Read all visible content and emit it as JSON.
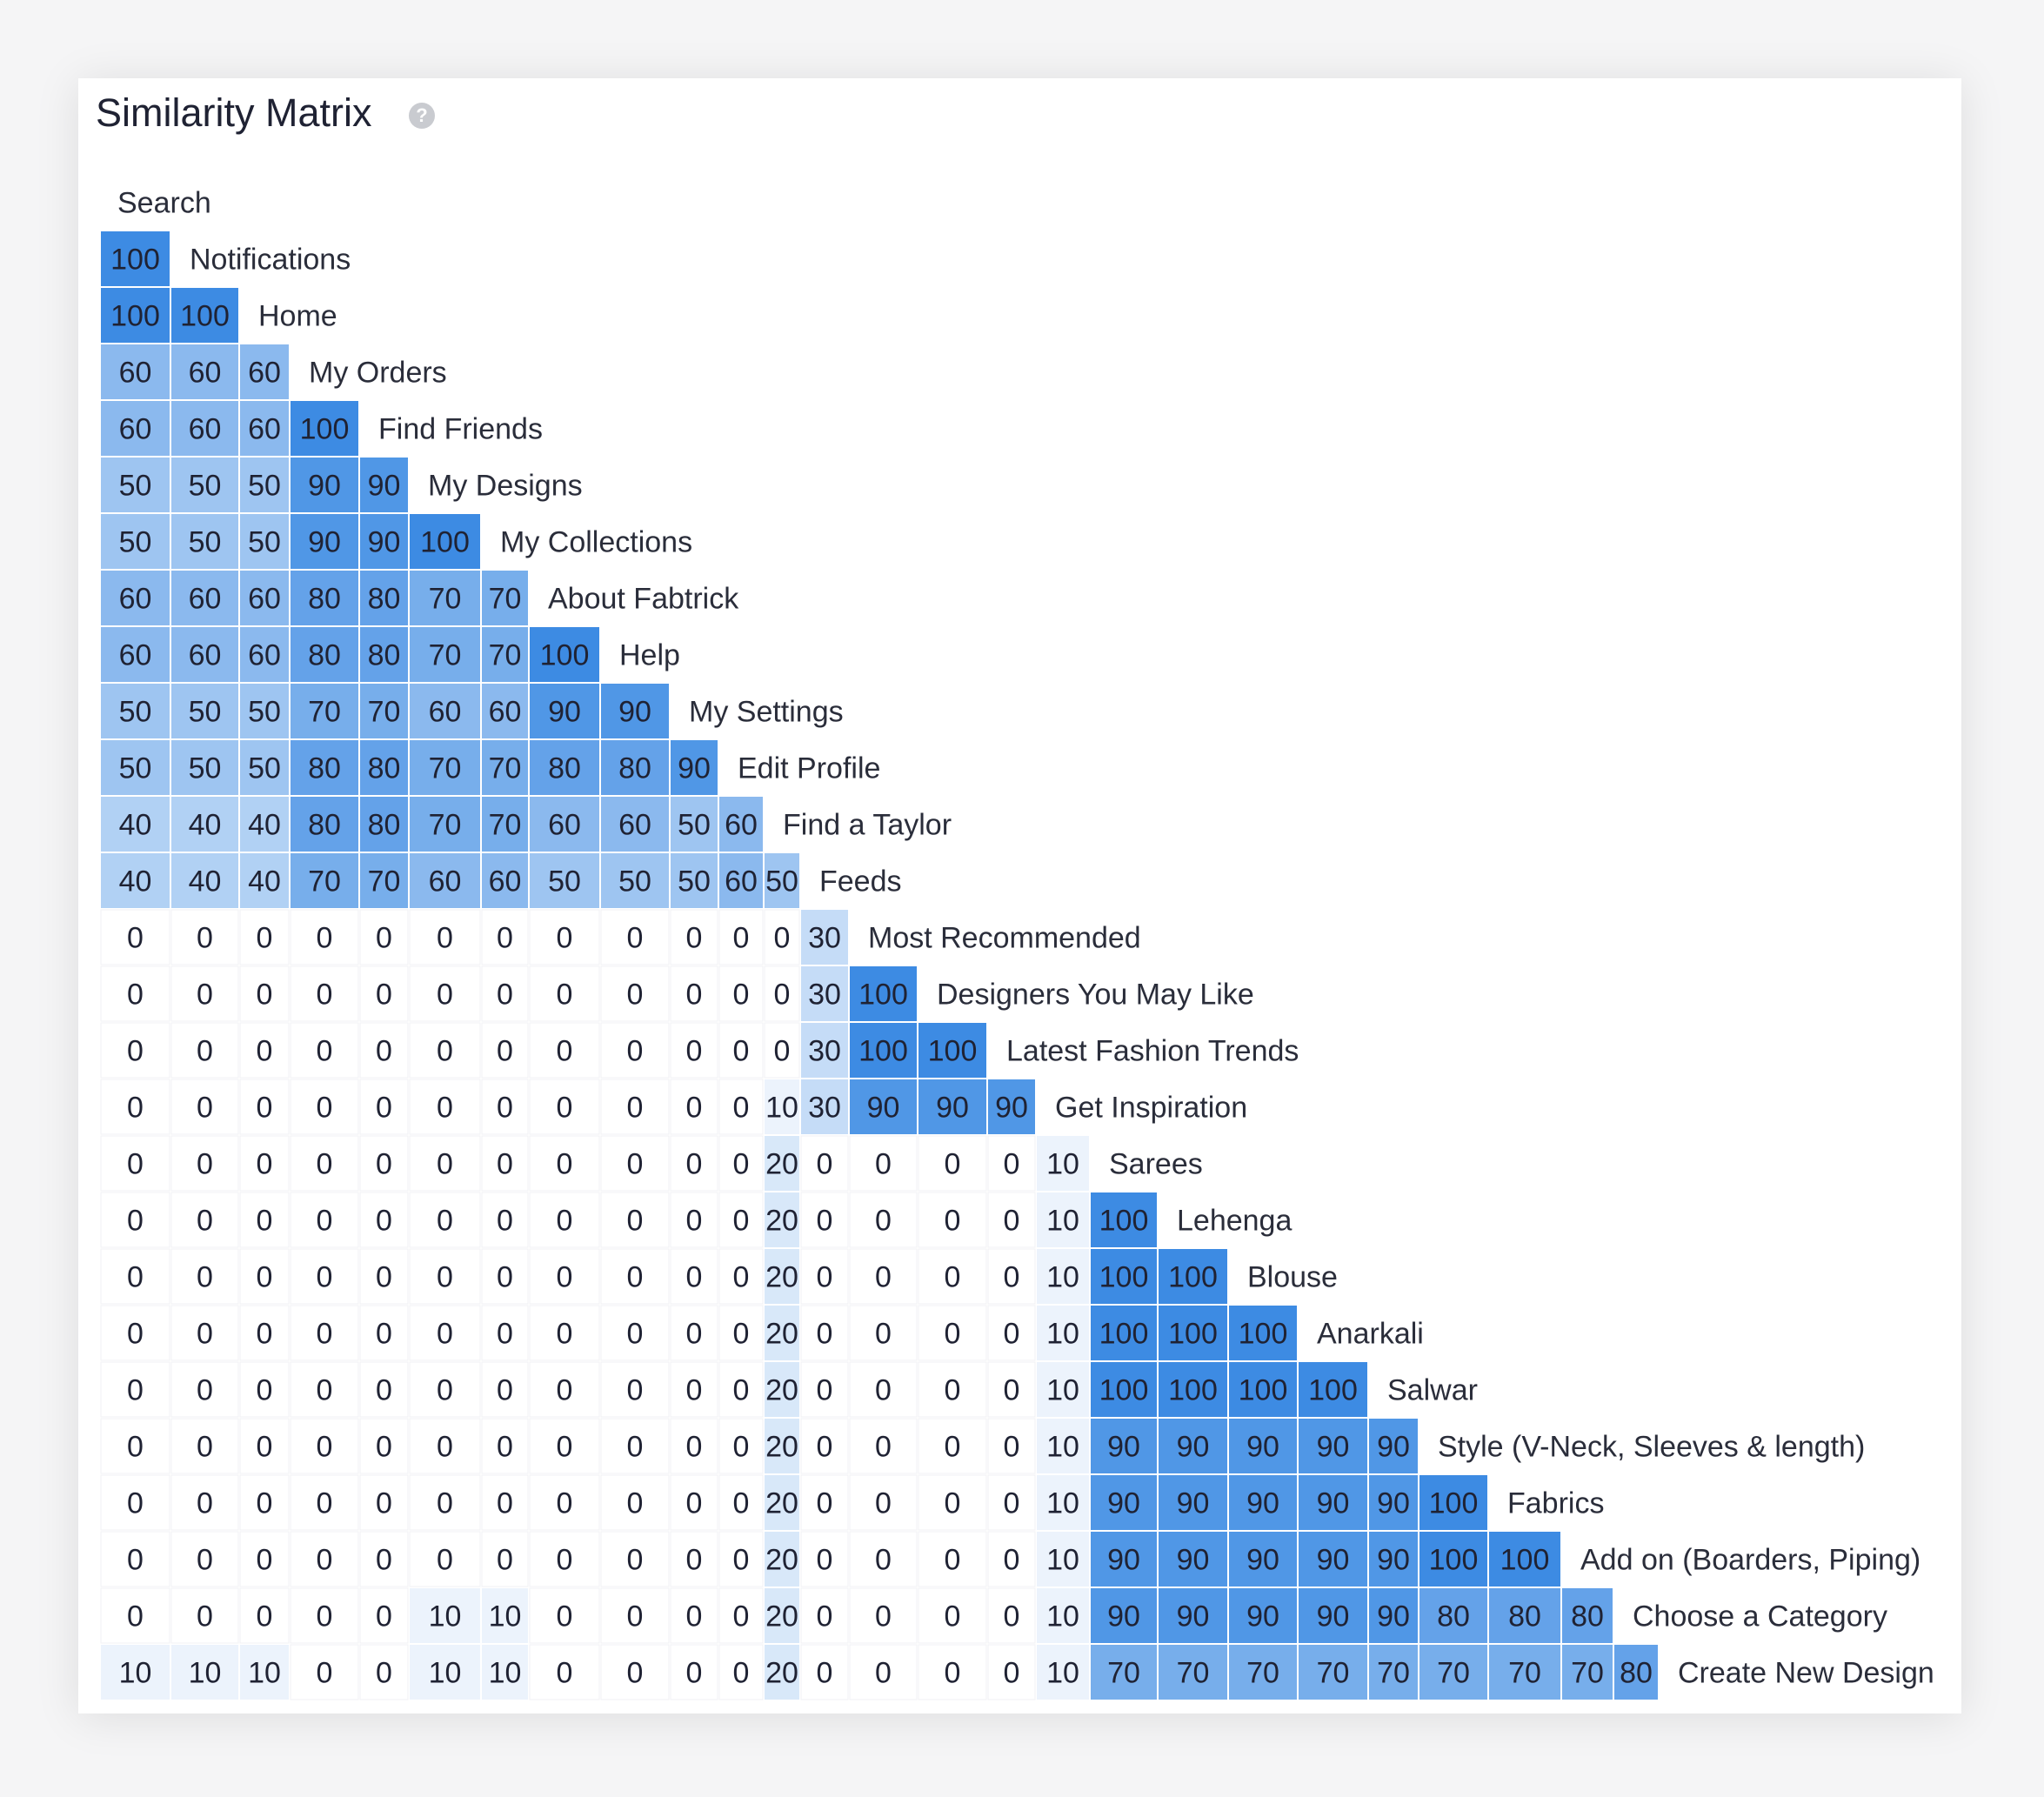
{
  "header": {
    "title": "Similarity Matrix",
    "help_icon": "question-circle-icon"
  },
  "chart_data": {
    "type": "heatmap",
    "title": "Similarity Matrix",
    "layout": "lower-triangular",
    "colors": {
      "low": "#ffffff",
      "high": "#3d8be3",
      "text": "#1f2233",
      "label": "#2a2d3a"
    },
    "value_range": [
      0,
      100
    ],
    "labels": [
      "Search",
      "Notifications",
      "Home",
      "My Orders",
      "Find Friends",
      "My Designs",
      "My Collections",
      "About Fabtrick",
      "Help",
      "My Settings",
      "Edit Profile",
      "Find a Taylor",
      "Feeds",
      "Most Recommended",
      "Designers You May Like",
      "Latest Fashion Trends",
      "Get Inspiration",
      "Sarees",
      "Lehenga",
      "Blouse",
      "Anarkali",
      "Salwar",
      "Style (V-Neck, Sleeves & length)",
      "Fabrics",
      "Add on (Boarders, Piping)",
      "Choose a Category",
      "Create New Design"
    ],
    "rows": [
      [],
      [
        100
      ],
      [
        100,
        100
      ],
      [
        60,
        60,
        60
      ],
      [
        60,
        60,
        60,
        100
      ],
      [
        50,
        50,
        50,
        90,
        90
      ],
      [
        50,
        50,
        50,
        90,
        90,
        100
      ],
      [
        60,
        60,
        60,
        80,
        80,
        70,
        70
      ],
      [
        60,
        60,
        60,
        80,
        80,
        70,
        70,
        100
      ],
      [
        50,
        50,
        50,
        70,
        70,
        60,
        60,
        90,
        90
      ],
      [
        50,
        50,
        50,
        80,
        80,
        70,
        70,
        80,
        80,
        90
      ],
      [
        40,
        40,
        40,
        80,
        80,
        70,
        70,
        60,
        60,
        50,
        60
      ],
      [
        40,
        40,
        40,
        70,
        70,
        60,
        60,
        50,
        50,
        50,
        60,
        50
      ],
      [
        0,
        0,
        0,
        0,
        0,
        0,
        0,
        0,
        0,
        0,
        0,
        0,
        30
      ],
      [
        0,
        0,
        0,
        0,
        0,
        0,
        0,
        0,
        0,
        0,
        0,
        0,
        30,
        100
      ],
      [
        0,
        0,
        0,
        0,
        0,
        0,
        0,
        0,
        0,
        0,
        0,
        0,
        30,
        100,
        100
      ],
      [
        0,
        0,
        0,
        0,
        0,
        0,
        0,
        0,
        0,
        0,
        0,
        10,
        30,
        90,
        90,
        90
      ],
      [
        0,
        0,
        0,
        0,
        0,
        0,
        0,
        0,
        0,
        0,
        0,
        20,
        0,
        0,
        0,
        0,
        10
      ],
      [
        0,
        0,
        0,
        0,
        0,
        0,
        0,
        0,
        0,
        0,
        0,
        20,
        0,
        0,
        0,
        0,
        10,
        100
      ],
      [
        0,
        0,
        0,
        0,
        0,
        0,
        0,
        0,
        0,
        0,
        0,
        20,
        0,
        0,
        0,
        0,
        10,
        100,
        100
      ],
      [
        0,
        0,
        0,
        0,
        0,
        0,
        0,
        0,
        0,
        0,
        0,
        20,
        0,
        0,
        0,
        0,
        10,
        100,
        100,
        100
      ],
      [
        0,
        0,
        0,
        0,
        0,
        0,
        0,
        0,
        0,
        0,
        0,
        20,
        0,
        0,
        0,
        0,
        10,
        100,
        100,
        100,
        100
      ],
      [
        0,
        0,
        0,
        0,
        0,
        0,
        0,
        0,
        0,
        0,
        0,
        20,
        0,
        0,
        0,
        0,
        10,
        90,
        90,
        90,
        90,
        90
      ],
      [
        0,
        0,
        0,
        0,
        0,
        0,
        0,
        0,
        0,
        0,
        0,
        20,
        0,
        0,
        0,
        0,
        10,
        90,
        90,
        90,
        90,
        90,
        100
      ],
      [
        0,
        0,
        0,
        0,
        0,
        0,
        0,
        0,
        0,
        0,
        0,
        20,
        0,
        0,
        0,
        0,
        10,
        90,
        90,
        90,
        90,
        90,
        100,
        100
      ],
      [
        0,
        0,
        0,
        0,
        0,
        10,
        10,
        0,
        0,
        0,
        0,
        20,
        0,
        0,
        0,
        0,
        10,
        90,
        90,
        90,
        90,
        90,
        80,
        80,
        80
      ],
      [
        10,
        10,
        10,
        0,
        0,
        10,
        10,
        0,
        0,
        0,
        0,
        20,
        0,
        0,
        0,
        0,
        10,
        70,
        70,
        70,
        70,
        70,
        70,
        70,
        70,
        80
      ]
    ]
  }
}
